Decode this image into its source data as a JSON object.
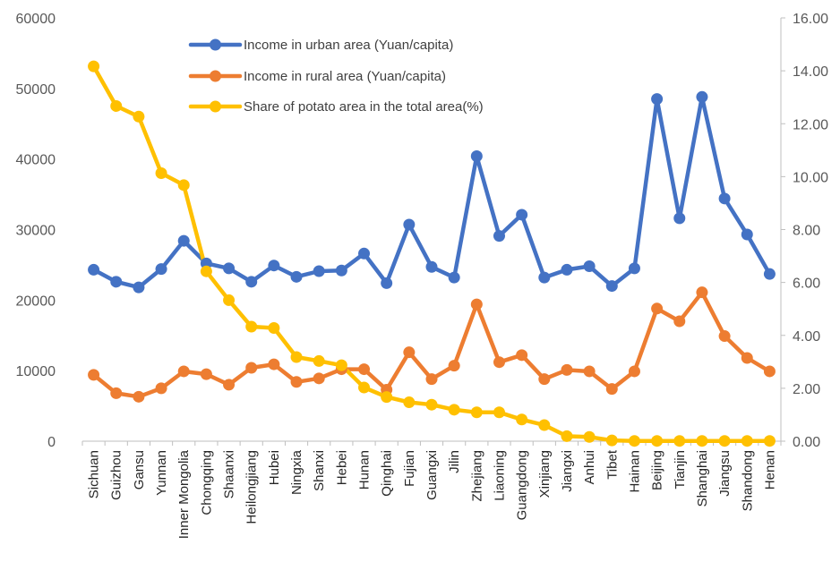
{
  "chart_data": {
    "type": "line",
    "title": "",
    "xlabel": "",
    "ylabel": "",
    "y2label": "",
    "grid": false,
    "legend_position": "top-center",
    "categories": [
      "Sichuan",
      "Guizhou",
      "Gansu",
      "Yunnan",
      "Inner Mongolia",
      "Chongqing",
      "Shaanxi",
      "Heilongjiang",
      "Hubei",
      "Ningxia",
      "Shanxi",
      "Hebei",
      "Hunan",
      "Qinghai",
      "Fujian",
      "Guangxi",
      "Jilin",
      "Zhejiang",
      "Liaoning",
      "Guangdong",
      "Xinjiang",
      "Jiangxi",
      "Anhui",
      "Tibet",
      "Hainan",
      "Beijing",
      "Tianjin",
      "Shanghai",
      "Jiangsu",
      "Shandong",
      "Henan"
    ],
    "y_axis": {
      "min": 0,
      "max": 60000,
      "step": 10000,
      "tick_labels": [
        "0",
        "10000",
        "20000",
        "30000",
        "40000",
        "50000",
        "60000"
      ]
    },
    "y2_axis": {
      "min": 0,
      "max": 16,
      "step": 2,
      "tick_labels": [
        "0.00",
        "2.00",
        "4.00",
        "6.00",
        "8.00",
        "10.00",
        "12.00",
        "14.00",
        "16.00"
      ]
    },
    "series": [
      {
        "name": "Income in urban area (Yuan/capita)",
        "axis": "left",
        "color": "#4472C4",
        "values": [
          24300,
          22600,
          21800,
          24400,
          28400,
          25200,
          24500,
          22600,
          24900,
          23300,
          24100,
          24200,
          26600,
          22400,
          30700,
          24700,
          23200,
          40400,
          29100,
          32100,
          23200,
          24300,
          24800,
          22000,
          24500,
          48500,
          31600,
          48800,
          34400,
          29300,
          23700
        ]
      },
      {
        "name": "Income in rural area (Yuan/capita)",
        "axis": "left",
        "color": "#ED7D31",
        "values": [
          9400,
          6800,
          6300,
          7500,
          9900,
          9500,
          8000,
          10400,
          10900,
          8400,
          8900,
          10200,
          10200,
          7300,
          12600,
          8800,
          10700,
          19400,
          11200,
          12200,
          8800,
          10100,
          9900,
          7400,
          9900,
          18800,
          17000,
          21100,
          14900,
          11800,
          9900
        ]
      },
      {
        "name": "Share of potato area in the total area(%)",
        "axis": "right",
        "color": "#FFC000",
        "values": [
          14.17,
          12.67,
          12.27,
          10.13,
          9.68,
          6.42,
          5.33,
          4.33,
          4.28,
          3.18,
          3.03,
          2.87,
          2.03,
          1.67,
          1.47,
          1.38,
          1.19,
          1.09,
          1.09,
          0.82,
          0.61,
          0.19,
          0.16,
          0.03,
          0.01,
          0.01,
          0.01,
          0.01,
          0.01,
          0.01,
          0.01
        ]
      }
    ]
  }
}
